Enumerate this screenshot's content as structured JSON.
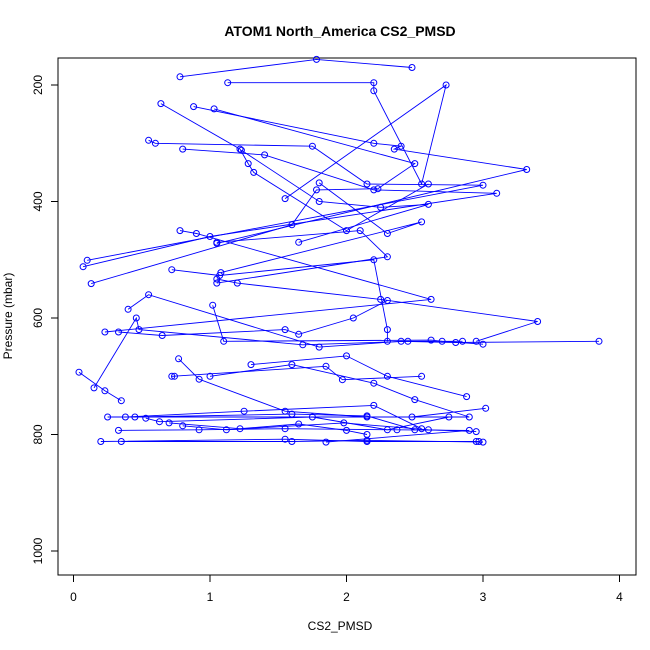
{
  "chart_data": {
    "type": "line",
    "title": "ATOM1 North_America CS2_PMSD",
    "xlabel": "CS2_PMSD",
    "ylabel": "Pressure (mbar)",
    "xlim": [
      0,
      4
    ],
    "ylim": [
      1000,
      200
    ],
    "y_axis_reversed": true,
    "xticks": [
      0,
      1,
      2,
      3,
      4
    ],
    "yticks": [
      200,
      400,
      600,
      800,
      1000
    ],
    "grid": false,
    "legend": "none",
    "marker": "open-circle",
    "color": "#0000ff",
    "series": [
      {
        "points": [
          [
            0.78,
            186
          ],
          [
            1.78,
            156
          ],
          [
            2.48,
            170
          ]
        ]
      },
      {
        "points": [
          [
            1.13,
            196
          ],
          [
            2.2,
            196
          ],
          [
            2.2,
            210
          ],
          [
            2.55,
            370
          ],
          [
            2.73,
            200
          ],
          [
            1.55,
            395
          ]
        ]
      },
      {
        "points": [
          [
            0.64,
            232
          ],
          [
            1.22,
            310
          ],
          [
            1.28,
            335
          ],
          [
            1.32,
            350
          ],
          [
            2.0,
            450
          ],
          [
            2.6,
            370
          ]
        ]
      },
      {
        "points": [
          [
            0.88,
            237
          ],
          [
            2.2,
            300
          ],
          [
            2.4,
            305
          ],
          [
            2.35,
            310
          ],
          [
            3.32,
            345
          ],
          [
            1.05,
            472
          ]
        ]
      },
      {
        "points": [
          [
            1.03,
            241
          ],
          [
            2.5,
            335
          ],
          [
            2.23,
            378
          ],
          [
            1.78,
            380
          ],
          [
            1.6,
            440
          ],
          [
            0.13,
            541
          ]
        ]
      },
      {
        "points": [
          [
            0.55,
            295
          ],
          [
            0.6,
            300
          ],
          [
            1.75,
            305
          ],
          [
            2.15,
            370
          ],
          [
            3.0,
            372
          ],
          [
            0.1,
            501
          ]
        ]
      },
      {
        "points": [
          [
            0.8,
            310
          ],
          [
            1.4,
            320
          ],
          [
            2.2,
            380
          ],
          [
            3.1,
            386
          ],
          [
            1.0,
            460
          ],
          [
            0.07,
            512
          ]
        ]
      },
      {
        "points": [
          [
            1.23,
            312
          ],
          [
            1.8,
            400
          ],
          [
            2.25,
            410
          ],
          [
            2.6,
            405
          ],
          [
            1.65,
            470
          ]
        ]
      },
      {
        "points": [
          [
            1.8,
            368
          ],
          [
            2.3,
            455
          ],
          [
            2.55,
            435
          ],
          [
            1.08,
            522
          ]
        ]
      },
      {
        "points": [
          [
            1.05,
            470
          ],
          [
            2.1,
            450
          ],
          [
            2.3,
            495
          ],
          [
            1.05,
            540
          ]
        ]
      },
      {
        "points": [
          [
            0.78,
            450
          ],
          [
            0.9,
            455
          ],
          [
            2.62,
            568
          ],
          [
            0.23,
            624
          ]
        ]
      },
      {
        "points": [
          [
            0.72,
            517
          ],
          [
            1.07,
            527
          ],
          [
            2.2,
            500
          ],
          [
            2.3,
            620
          ],
          [
            2.3,
            640
          ]
        ]
      },
      {
        "points": [
          [
            1.05,
            533
          ],
          [
            1.2,
            540
          ],
          [
            2.25,
            568
          ],
          [
            3.4,
            606
          ],
          [
            2.95,
            640
          ]
        ]
      },
      {
        "points": [
          [
            0.4,
            585
          ],
          [
            0.55,
            560
          ],
          [
            1.8,
            650
          ],
          [
            2.4,
            640
          ],
          [
            2.8,
            642
          ],
          [
            3.85,
            640
          ]
        ]
      },
      {
        "points": [
          [
            1.02,
            578
          ],
          [
            1.1,
            640
          ],
          [
            2.62,
            638
          ],
          [
            2.7,
            640
          ],
          [
            3.0,
            645
          ]
        ]
      },
      {
        "points": [
          [
            0.33,
            624
          ],
          [
            0.65,
            630
          ],
          [
            1.55,
            620
          ],
          [
            1.65,
            628
          ],
          [
            2.05,
            600
          ],
          [
            2.3,
            570
          ]
        ]
      },
      {
        "points": [
          [
            0.04,
            693
          ],
          [
            0.23,
            725
          ],
          [
            0.35,
            742
          ]
        ]
      },
      {
        "points": [
          [
            0.15,
            720
          ],
          [
            0.46,
            600
          ],
          [
            0.48,
            620
          ],
          [
            1.68,
            646
          ],
          [
            2.45,
            640
          ],
          [
            2.85,
            640
          ]
        ]
      },
      {
        "points": [
          [
            0.77,
            670
          ],
          [
            0.92,
            705
          ],
          [
            1.55,
            760
          ],
          [
            2.15,
            770
          ],
          [
            2.48,
            770
          ],
          [
            3.02,
            755
          ]
        ]
      },
      {
        "points": [
          [
            0.74,
            700
          ],
          [
            0.72,
            700
          ],
          [
            1.85,
            683
          ],
          [
            1.97,
            706
          ],
          [
            2.55,
            700
          ]
        ]
      },
      {
        "points": [
          [
            1.3,
            680
          ],
          [
            2.0,
            665
          ],
          [
            2.3,
            700
          ],
          [
            2.88,
            735
          ]
        ]
      },
      {
        "points": [
          [
            1.0,
            700
          ],
          [
            1.6,
            680
          ],
          [
            2.2,
            712
          ],
          [
            2.5,
            740
          ],
          [
            2.9,
            770
          ],
          [
            0.25,
            770
          ]
        ]
      },
      {
        "points": [
          [
            0.38,
            770
          ],
          [
            1.25,
            760
          ],
          [
            2.2,
            750
          ],
          [
            2.55,
            790
          ]
        ]
      },
      {
        "points": [
          [
            0.45,
            770
          ],
          [
            1.6,
            765
          ],
          [
            2.15,
            768
          ],
          [
            2.5,
            792
          ]
        ]
      },
      {
        "points": [
          [
            0.53,
            772
          ],
          [
            0.63,
            778
          ],
          [
            1.75,
            770
          ],
          [
            2.3,
            792
          ],
          [
            2.75,
            770
          ]
        ]
      },
      {
        "points": [
          [
            0.7,
            780
          ],
          [
            1.22,
            790
          ],
          [
            1.65,
            782
          ],
          [
            2.0,
            793
          ],
          [
            2.15,
            800
          ]
        ]
      },
      {
        "points": [
          [
            0.8,
            785
          ],
          [
            1.12,
            792
          ],
          [
            1.98,
            780
          ],
          [
            2.6,
            792
          ],
          [
            2.95,
            795
          ]
        ]
      },
      {
        "points": [
          [
            0.33,
            793
          ],
          [
            0.92,
            792
          ],
          [
            1.55,
            790
          ],
          [
            2.37,
            792
          ],
          [
            2.9,
            793
          ],
          [
            1.85,
            813
          ]
        ]
      },
      {
        "points": [
          [
            0.2,
            812
          ],
          [
            1.55,
            808
          ],
          [
            2.15,
            812
          ],
          [
            2.95,
            812
          ],
          [
            2.97,
            812
          ]
        ]
      },
      {
        "points": [
          [
            0.35,
            812
          ],
          [
            1.6,
            812
          ],
          [
            2.15,
            810
          ],
          [
            3.0,
            813
          ]
        ]
      }
    ]
  }
}
